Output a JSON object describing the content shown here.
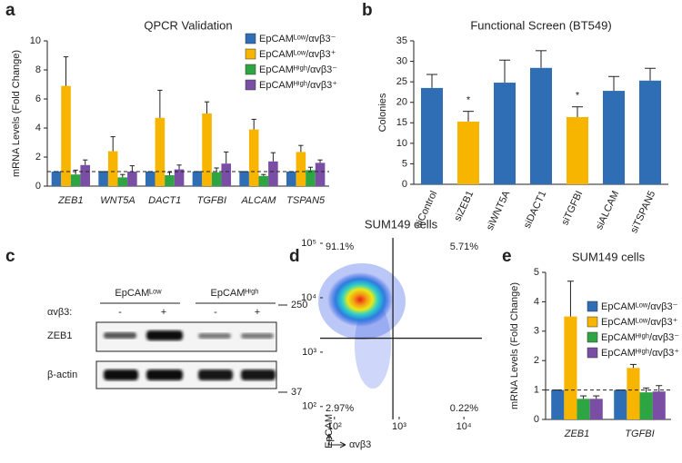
{
  "panel_labels": [
    "a",
    "b",
    "c",
    "d",
    "e"
  ],
  "chart_data": [
    {
      "type": "bar",
      "title": "QPCR Validation",
      "ylabel": "mRNA Levels (Fold Change)",
      "categories": [
        "ZEB1",
        "WNT5A",
        "DACT1",
        "TGFBI",
        "ALCAM",
        "TSPAN5"
      ],
      "ylim": [
        0,
        10
      ],
      "yticks": [
        0,
        2,
        4,
        6,
        8,
        10
      ],
      "reference_line": 1,
      "legend": "upper right",
      "series": [
        {
          "name": "EpCAMᴸᵒʷ/αvβ3⁻",
          "color": "#2f6db5",
          "values": [
            1,
            1,
            1,
            1,
            1,
            1
          ],
          "errors": [
            0,
            0,
            0,
            0,
            0,
            0
          ]
        },
        {
          "name": "EpCAMᴸᵒʷ/αvβ3⁺",
          "color": "#f7b500",
          "values": [
            6.9,
            2.4,
            4.7,
            5.0,
            3.9,
            2.35
          ],
          "errors": [
            2.0,
            1.0,
            1.9,
            0.8,
            0.7,
            0.45
          ]
        },
        {
          "name": "EpCAMᴴⁱᵍʰ/αvβ3⁻",
          "color": "#2ea543",
          "values": [
            0.8,
            0.6,
            0.75,
            0.95,
            0.7,
            1.1
          ],
          "errors": [
            0.3,
            0.2,
            0.2,
            0.3,
            0.1,
            0.2
          ]
        },
        {
          "name": "EpCAMᴴⁱᵍʰ/αvβ3⁺",
          "color": "#7b4ea6",
          "values": [
            1.45,
            1.0,
            1.15,
            1.55,
            1.7,
            1.6
          ],
          "errors": [
            0.35,
            0.4,
            0.3,
            0.8,
            0.6,
            0.2
          ]
        }
      ]
    },
    {
      "type": "bar",
      "title": "Functional Screen (BT549)",
      "ylabel": "Colonies",
      "categories": [
        "siControl",
        "siZEB1",
        "siWNT5A",
        "siDACT1",
        "siTGFBI",
        "siALCAM",
        "siTSPAN5"
      ],
      "values": [
        23.5,
        15.3,
        24.8,
        28.4,
        16.4,
        22.8,
        25.3
      ],
      "errors": [
        3.3,
        2.5,
        5.5,
        4.2,
        2.5,
        3.5,
        3.0
      ],
      "colors": [
        "#2f6db5",
        "#f7b500",
        "#2f6db5",
        "#2f6db5",
        "#f7b500",
        "#2f6db5",
        "#2f6db5"
      ],
      "ylim": [
        0,
        35
      ],
      "yticks": [
        0,
        5,
        10,
        15,
        20,
        25,
        30,
        35
      ],
      "annotations": [
        {
          "text": "*",
          "category": "siZEB1"
        },
        {
          "text": "*",
          "category": "siTGFBI"
        }
      ]
    },
    {
      "type": "scatter",
      "title": "SUM149 cells",
      "xlabel": "αvβ3",
      "ylabel": "EpCAM",
      "xscale": "log",
      "yscale": "log",
      "xlim": [
        60,
        19000
      ],
      "ylim": [
        58,
        126000
      ],
      "xticks": [
        {
          "value": 100,
          "label": "10²"
        },
        {
          "value": 1000,
          "label": "10³"
        },
        {
          "value": 10000,
          "label": "10⁴"
        }
      ],
      "yticks": [
        {
          "value": 100,
          "label": "10²"
        },
        {
          "value": 1000,
          "label": "10³"
        },
        {
          "value": 10000,
          "label": "10⁴"
        },
        {
          "value": 100000,
          "label": "10⁵"
        }
      ],
      "gates": {
        "x": 800,
        "y": 1800
      },
      "values": [
        91.1,
        5.71,
        2.97,
        0.22
      ],
      "value_labels": [
        "91.1%",
        "5.71%",
        "2.97%",
        "0.22%"
      ]
    },
    {
      "type": "bar",
      "title": "SUM149 cells",
      "ylabel": "mRNA Levels (Fold Change)",
      "categories": [
        "ZEB1",
        "TGFBI"
      ],
      "ylim": [
        0,
        5
      ],
      "yticks": [
        0,
        1,
        2,
        3,
        4,
        5
      ],
      "reference_line": 1,
      "legend": "upper right",
      "series": [
        {
          "name": "EpCAMᴸᵒʷ/αvβ3⁻",
          "color": "#2f6db5",
          "values": [
            1,
            1
          ],
          "errors": [
            0,
            0
          ]
        },
        {
          "name": "EpCAMᴸᵒʷ/αvβ3⁺",
          "color": "#f7b500",
          "values": [
            3.5,
            1.75
          ],
          "errors": [
            1.2,
            0.12
          ]
        },
        {
          "name": "EpCAMᴴⁱᵍʰ/αvβ3⁻",
          "color": "#2ea543",
          "values": [
            0.7,
            0.92
          ],
          "errors": [
            0.1,
            0.15
          ]
        },
        {
          "name": "EpCAMᴴⁱᵍʰ/αvβ3⁺",
          "color": "#7b4ea6",
          "values": [
            0.7,
            0.95
          ],
          "errors": [
            0.1,
            0.2
          ]
        }
      ]
    }
  ],
  "blot": {
    "groups": [
      "EpCAMᴸᵒʷ",
      "EpCAMᴴⁱᵍʰ"
    ],
    "row_label": "αvβ3:",
    "lanes": [
      "-",
      "+",
      "-",
      "+"
    ],
    "bands": [
      "ZEB1",
      "β-actin"
    ],
    "markers": [
      "250",
      "37"
    ]
  }
}
